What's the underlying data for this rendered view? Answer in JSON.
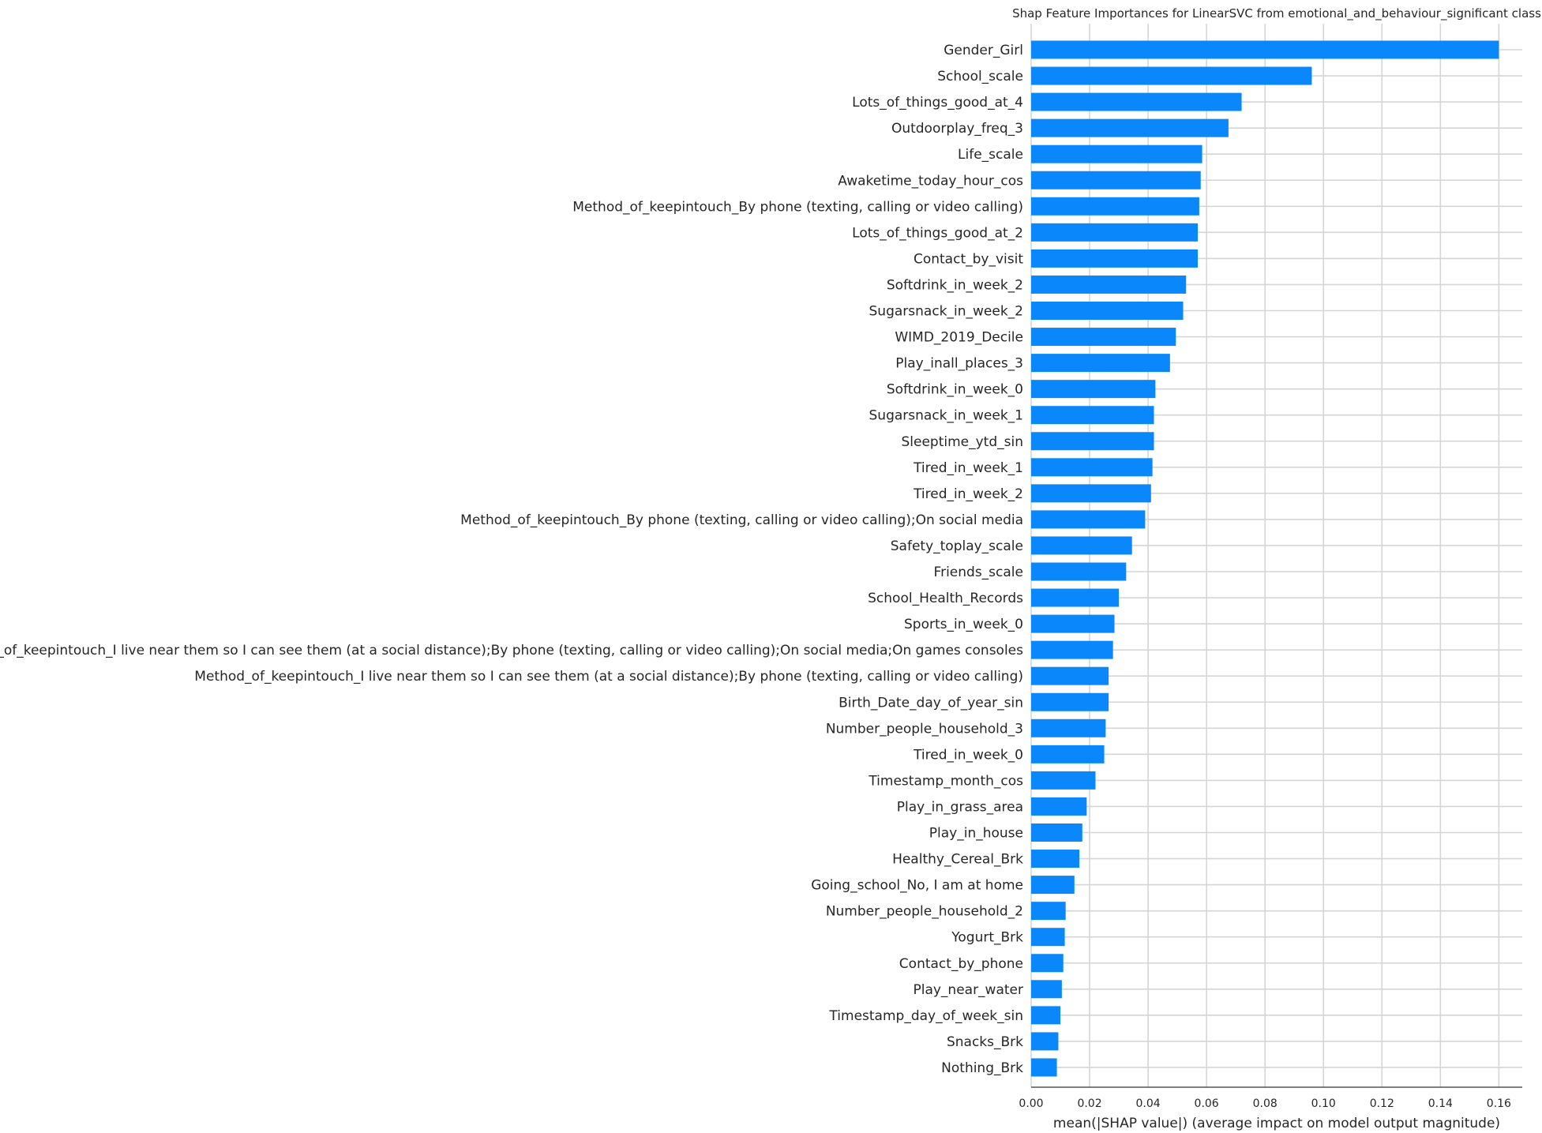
{
  "chart_data": {
    "type": "bar",
    "orientation": "horizontal",
    "title": "Shap Feature Importances for LinearSVC from emotional_and_behaviour_significant class",
    "xlabel": "mean(|SHAP value|) (average impact on model output magnitude)",
    "ylabel": "",
    "xlim": [
      0,
      0.168
    ],
    "xticks": [
      "0.00",
      "0.02",
      "0.04",
      "0.06",
      "0.08",
      "0.10",
      "0.12",
      "0.14",
      "0.16"
    ],
    "grid": true,
    "bar_color": "#0a88fb",
    "categories": [
      "Gender_Girl",
      "School_scale",
      "Lots_of_things_good_at_4",
      "Outdoorplay_freq_3",
      "Life_scale",
      "Awaketime_today_hour_cos",
      "Method_of_keepintouch_By phone (texting, calling or video calling)",
      "Lots_of_things_good_at_2",
      "Contact_by_visit",
      "Softdrink_in_week_2",
      "Sugarsnack_in_week_2",
      "WIMD_2019_Decile",
      "Play_inall_places_3",
      "Softdrink_in_week_0",
      "Sugarsnack_in_week_1",
      "Sleeptime_ytd_sin",
      "Tired_in_week_1",
      "Tired_in_week_2",
      "Method_of_keepintouch_By phone (texting, calling or video calling);On social media",
      "Safety_toplay_scale",
      "Friends_scale",
      "School_Health_Records",
      "Sports_in_week_0",
      "Method_of_keepintouch_I live near them so I can see them (at a social distance);By phone (texting, calling or video calling);On social media;On games consoles",
      "Method_of_keepintouch_I live near them so I can see them (at a social distance);By phone (texting, calling or video calling)",
      "Birth_Date_day_of_year_sin",
      "Number_people_household_3",
      "Tired_in_week_0",
      "Timestamp_month_cos",
      "Play_in_grass_area",
      "Play_in_house",
      "Healthy_Cereal_Brk",
      "Going_school_No, I am at home",
      "Number_people_household_2",
      "Yogurt_Brk",
      "Contact_by_phone",
      "Play_near_water",
      "Timestamp_day_of_week_sin",
      "Snacks_Brk",
      "Nothing_Brk"
    ],
    "values": [
      0.16,
      0.096,
      0.072,
      0.0675,
      0.0585,
      0.058,
      0.0575,
      0.057,
      0.057,
      0.053,
      0.052,
      0.0495,
      0.0475,
      0.0425,
      0.042,
      0.042,
      0.0415,
      0.041,
      0.039,
      0.0345,
      0.0325,
      0.03,
      0.0285,
      0.028,
      0.0265,
      0.0265,
      0.0255,
      0.025,
      0.022,
      0.019,
      0.0175,
      0.0165,
      0.0148,
      0.0118,
      0.0115,
      0.011,
      0.0105,
      0.01,
      0.0093,
      0.0088
    ]
  }
}
